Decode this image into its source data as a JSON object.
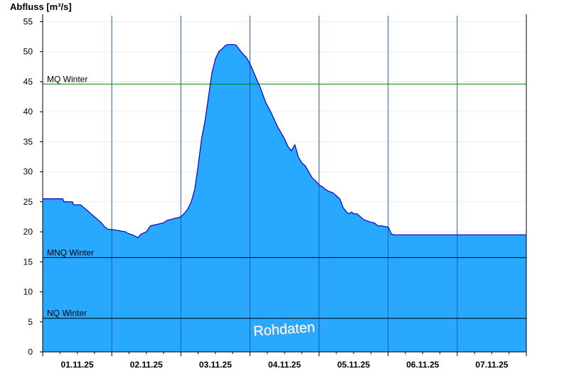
{
  "chart_data": {
    "type": "area",
    "ylabel": "Abfluss [m³/s]",
    "ylim": [
      0,
      56
    ],
    "yticks": [
      0,
      5,
      10,
      15,
      20,
      25,
      30,
      35,
      40,
      45,
      50,
      55
    ],
    "x_range": [
      0.0,
      7.0
    ],
    "x_ticks": [
      {
        "label": "01.11.25",
        "at": 0.5
      },
      {
        "label": "02.11.25",
        "at": 1.5
      },
      {
        "label": "03.11.25",
        "at": 2.5
      },
      {
        "label": "04.11.25",
        "at": 3.5
      },
      {
        "label": "05.11.25",
        "at": 4.5
      },
      {
        "label": "06.11.25",
        "at": 5.5
      },
      {
        "label": "07.11.25",
        "at": 6.5
      }
    ],
    "reference_lines": [
      {
        "label": "MQ Winter",
        "value": 44.6,
        "color": "#008000"
      },
      {
        "label": "MNQ Winter",
        "value": 15.7,
        "color": "#000000"
      },
      {
        "label": "NQ Winter",
        "value": 5.6,
        "color": "#000000"
      }
    ],
    "series": [
      {
        "fill_color": "#29a8ff",
        "line_color": "#0000cc",
        "x": [
          0.0,
          0.29,
          0.31,
          0.43,
          0.45,
          0.55,
          0.6,
          0.65,
          0.7,
          0.75,
          0.8,
          0.85,
          0.9,
          0.95,
          1.0,
          1.2,
          1.22,
          1.3,
          1.35,
          1.38,
          1.42,
          1.5,
          1.56,
          1.75,
          1.8,
          2.0,
          2.06,
          2.1,
          2.15,
          2.2,
          2.25,
          2.3,
          2.35,
          2.4,
          2.45,
          2.5,
          2.55,
          2.6,
          2.65,
          2.7,
          2.75,
          2.8,
          2.85,
          2.9,
          2.95,
          3.0,
          3.15,
          3.23,
          3.3,
          3.4,
          3.45,
          3.5,
          3.55,
          3.6,
          3.65,
          3.7,
          3.75,
          3.8,
          3.85,
          3.9,
          3.95,
          4.0,
          4.05,
          4.1,
          4.15,
          4.2,
          4.25,
          4.3,
          4.35,
          4.4,
          4.43,
          4.47,
          4.5,
          4.55,
          4.6,
          4.65,
          4.7,
          4.75,
          4.8,
          4.85,
          4.9,
          4.95,
          5.0,
          5.05,
          5.1,
          5.2,
          5.3,
          5.35,
          5.4,
          5.5,
          5.6,
          5.8,
          5.9,
          6.0,
          6.05,
          6.1,
          6.25,
          6.4,
          6.7,
          6.85,
          6.88,
          7.0
        ],
        "y": [
          25.5,
          25.5,
          25.0,
          25.0,
          24.5,
          24.5,
          24.0,
          23.5,
          23.0,
          22.5,
          22.0,
          21.5,
          20.8,
          20.4,
          20.4,
          20.0,
          19.8,
          19.5,
          19.2,
          19.0,
          19.6,
          20.0,
          21.0,
          21.5,
          21.9,
          22.5,
          23.2,
          23.8,
          25.0,
          27.0,
          31.0,
          35.5,
          38.5,
          42.5,
          46.5,
          48.8,
          50.0,
          50.5,
          51.1,
          51.2,
          51.2,
          51.1,
          50.3,
          49.6,
          49.0,
          48.0,
          44.0,
          41.5,
          40.0,
          37.5,
          36.5,
          35.5,
          34.2,
          33.5,
          34.5,
          32.5,
          31.5,
          31.0,
          30.0,
          29.0,
          28.5,
          27.8,
          27.5,
          27.0,
          26.7,
          26.5,
          26.0,
          25.5,
          24.0,
          23.3,
          23.0,
          23.3,
          23.0,
          23.0,
          22.5,
          22.0,
          21.8,
          21.6,
          21.5,
          21.0,
          21.0,
          20.9,
          20.8,
          19.6,
          19.5,
          19.5,
          19.5,
          19.5,
          19.5,
          19.5,
          19.5,
          19.5,
          19.5,
          19.5,
          19.5,
          19.5,
          19.5,
          19.5,
          19.5,
          19.5,
          19.5,
          19.5
        ]
      }
    ],
    "annotations": [
      {
        "text": "Rohdaten"
      }
    ]
  }
}
